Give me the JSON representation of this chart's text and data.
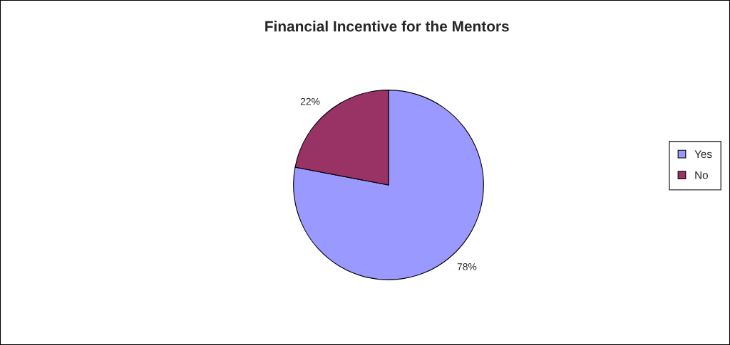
{
  "chart_data": {
    "type": "pie",
    "title": "Financial Incentive for the Mentors",
    "categories": [
      "Yes",
      "No"
    ],
    "values": [
      78,
      22
    ],
    "colors": [
      "#9999ff",
      "#993366"
    ],
    "value_labels": [
      "78%",
      "22%"
    ],
    "legend": "right"
  }
}
